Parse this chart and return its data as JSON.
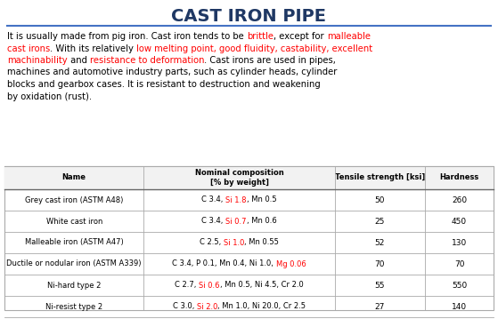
{
  "title": "CAST IRON PIPE",
  "title_color": "#1F3864",
  "bg_color": "#FFFFFF",
  "table_header_bg": "#F2F2F2",
  "table_border_color": "#AAAAAA",
  "line_color": "#4472C4",
  "para_lines": [
    [
      {
        "text": "It is usually made from pig iron. Cast iron tends to be ",
        "color": "black"
      },
      {
        "text": "brittle",
        "color": "red"
      },
      {
        "text": ", except for ",
        "color": "black"
      },
      {
        "text": "malleable",
        "color": "red"
      }
    ],
    [
      {
        "text": "cast irons",
        "color": "red"
      },
      {
        "text": ". With its relatively ",
        "color": "black"
      },
      {
        "text": "low melting point, good fluidity, castability, excellent",
        "color": "red"
      }
    ],
    [
      {
        "text": "machinability",
        "color": "red"
      },
      {
        "text": " and ",
        "color": "black"
      },
      {
        "text": "resistance to deformation",
        "color": "red"
      },
      {
        "text": ". Cast irons are used in pipes,",
        "color": "black"
      }
    ],
    [
      {
        "text": "machines and automotive industry parts, such as cylinder heads, cylinder",
        "color": "black"
      }
    ],
    [
      {
        "text": "blocks and gearbox cases. It is resistant to destruction and weakening",
        "color": "black"
      }
    ],
    [
      {
        "text": "by oxidation (rust).",
        "color": "black"
      }
    ]
  ],
  "table_headers": [
    "Name",
    "Nominal composition\n[% by weight]",
    "Tensile strength [ksi]",
    "Hardness"
  ],
  "table_rows": [
    {
      "name": "Grey cast iron (ASTM A48)",
      "composition": [
        {
          "text": "C 3.4, ",
          "color": "black"
        },
        {
          "text": "Si 1.8",
          "color": "red"
        },
        {
          "text": ", Mn 0.5",
          "color": "black"
        }
      ],
      "tensile": "50",
      "hardness": "260"
    },
    {
      "name": "White cast iron",
      "composition": [
        {
          "text": "C 3.4, ",
          "color": "black"
        },
        {
          "text": "Si 0.7",
          "color": "red"
        },
        {
          "text": ", Mn 0.6",
          "color": "black"
        }
      ],
      "tensile": "25",
      "hardness": "450"
    },
    {
      "name": "Malleable iron (ASTM A47)",
      "composition": [
        {
          "text": "C 2.5, ",
          "color": "black"
        },
        {
          "text": "Si 1.0",
          "color": "red"
        },
        {
          "text": ", Mn 0.55",
          "color": "black"
        }
      ],
      "tensile": "52",
      "hardness": "130"
    },
    {
      "name": "Ductile or nodular iron (ASTM A339)",
      "composition": [
        {
          "text": "C 3.4, P 0.1, Mn 0.4, Ni 1.0, ",
          "color": "black"
        },
        {
          "text": "Mg 0.06",
          "color": "red"
        }
      ],
      "tensile": "70",
      "hardness": "70"
    },
    {
      "name": "Ni-hard type 2",
      "composition": [
        {
          "text": "C 2.7, ",
          "color": "black"
        },
        {
          "text": "Si 0.6",
          "color": "red"
        },
        {
          "text": ", Mn 0.5, Ni 4.5, Cr 2.0",
          "color": "black"
        }
      ],
      "tensile": "55",
      "hardness": "550"
    },
    {
      "name": "Ni-resist type 2",
      "composition": [
        {
          "text": "C 3.0, ",
          "color": "black"
        },
        {
          "text": "Si 2.0",
          "color": "red"
        },
        {
          "text": ", Mn 1.0, Ni 20.0, Cr 2.5",
          "color": "black"
        }
      ],
      "tensile": "27",
      "hardness": "140"
    }
  ]
}
